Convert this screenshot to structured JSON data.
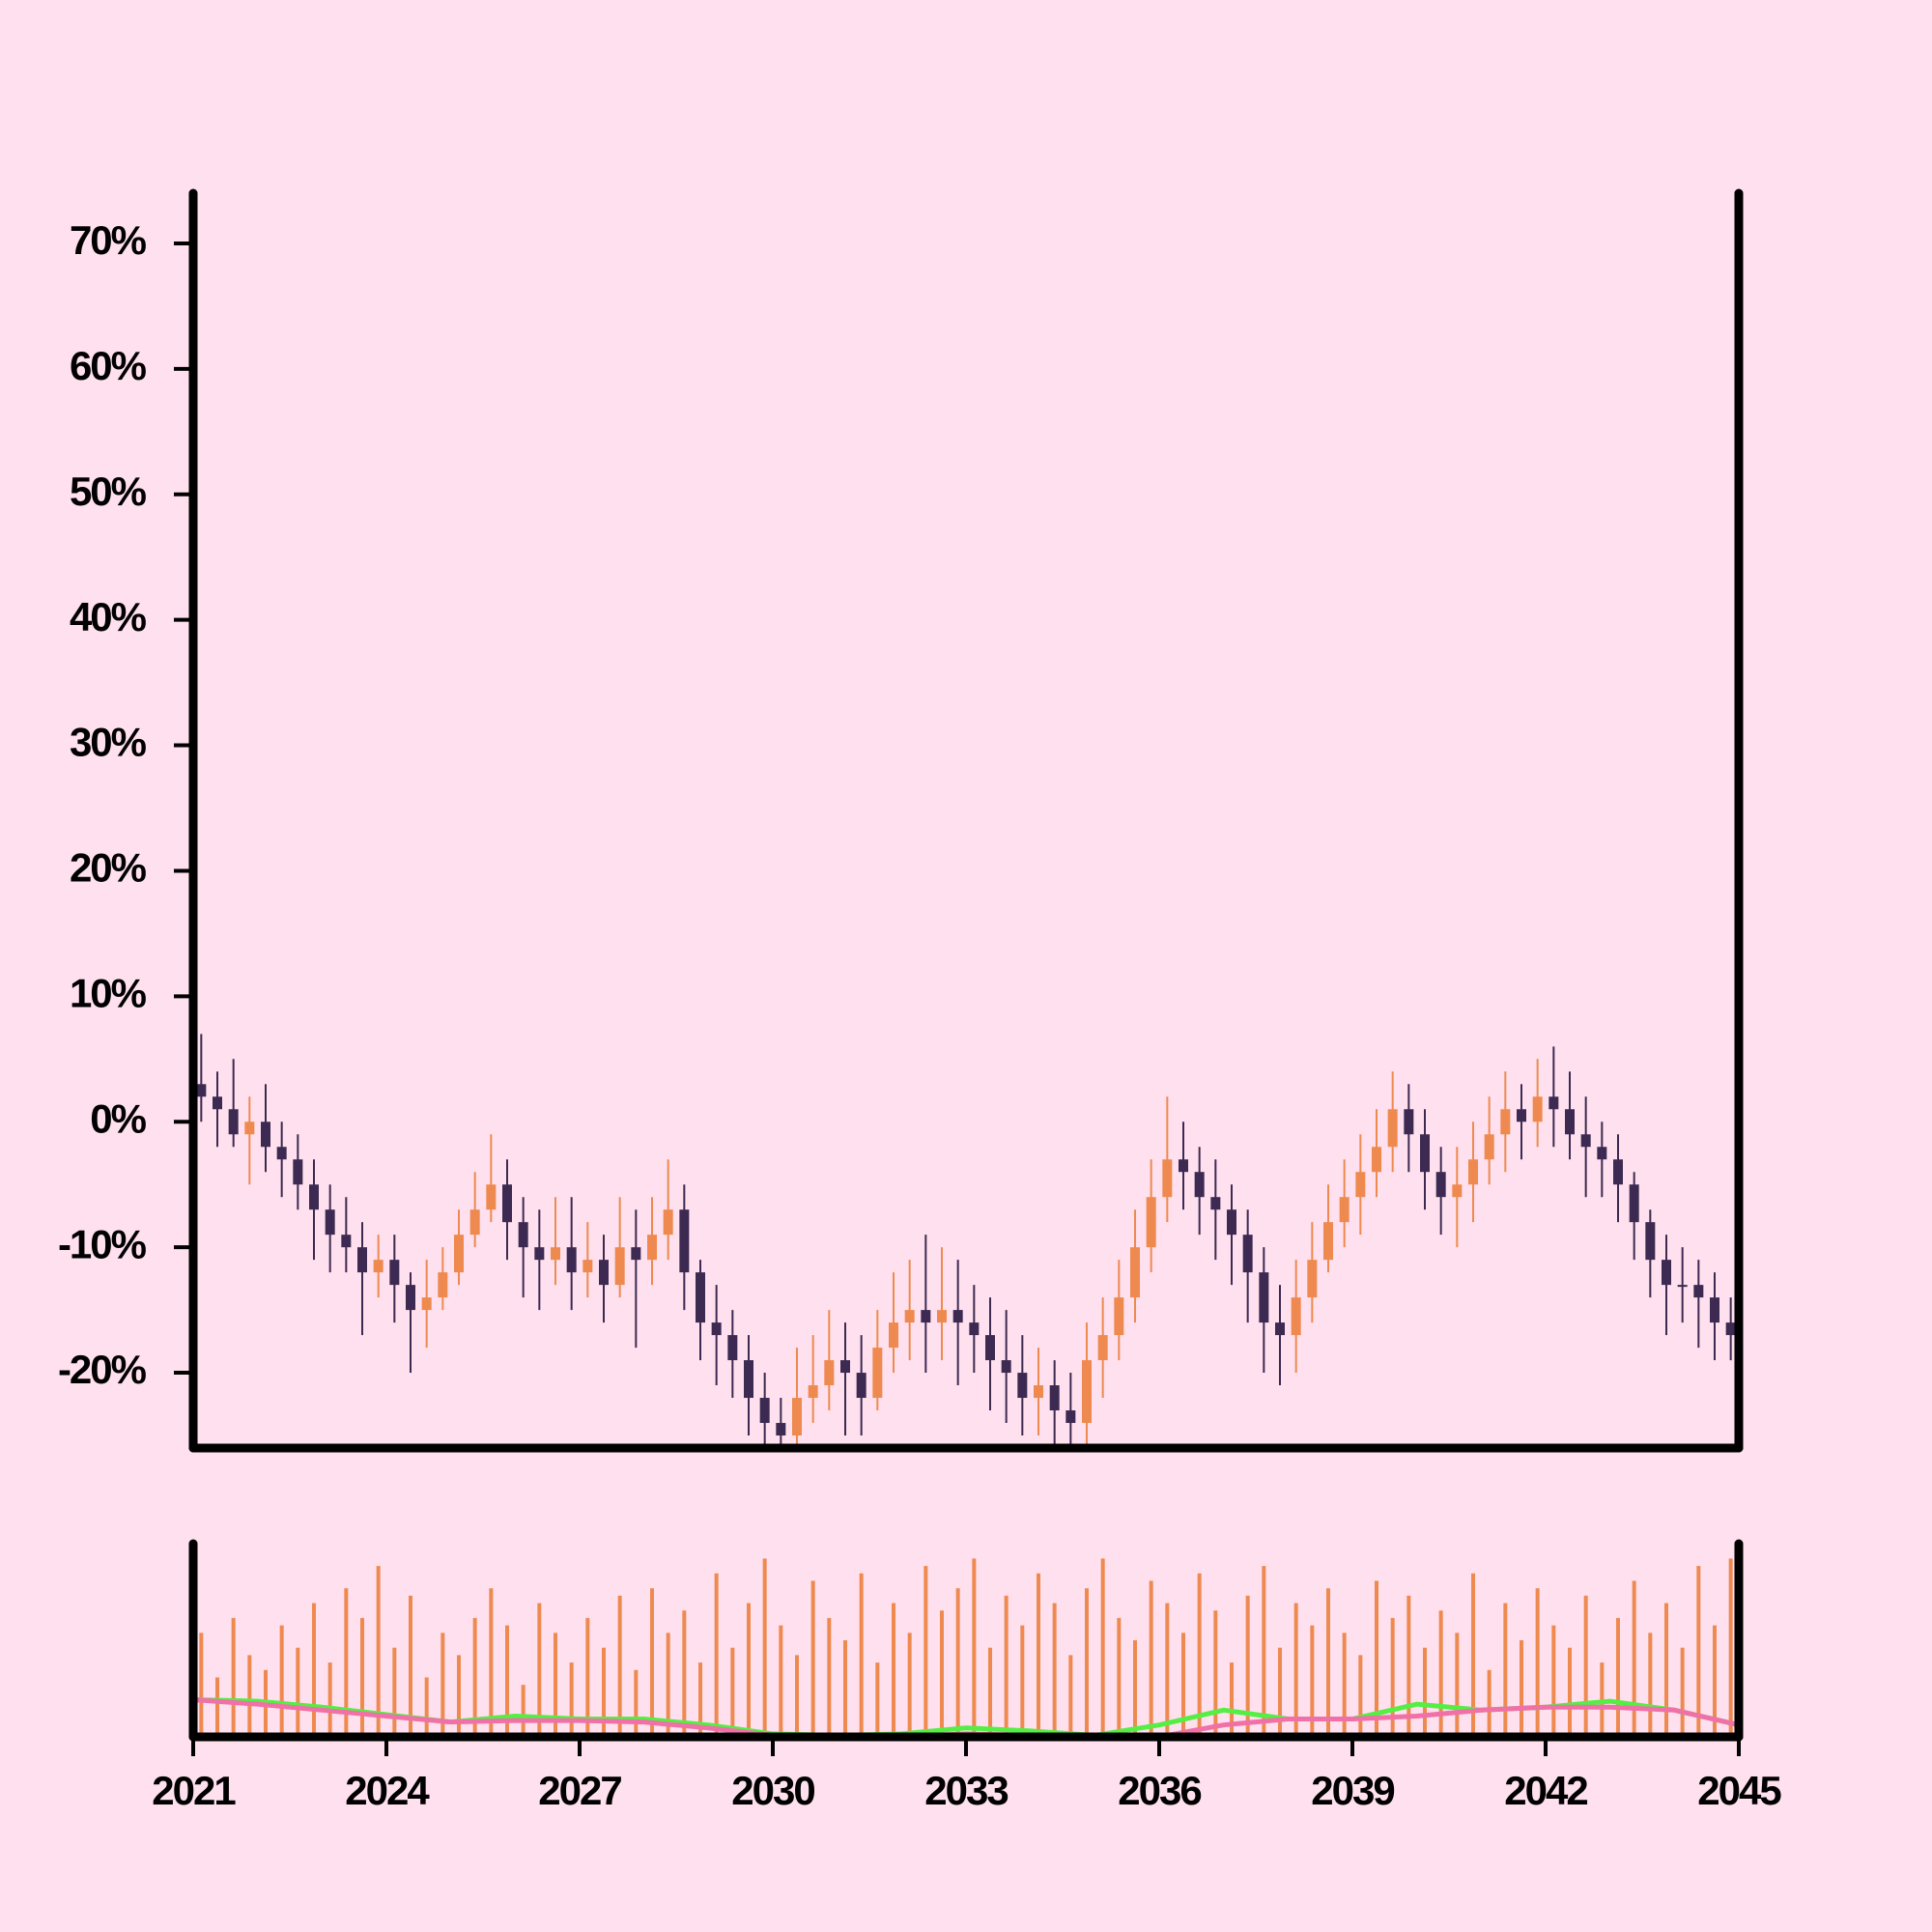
{
  "chart_data": {
    "type": "candlestick",
    "x": [
      2021,
      2021.25,
      2021.5,
      2021.75,
      2022,
      2022.25,
      2022.5,
      2022.75,
      2023,
      2023.25,
      2023.5,
      2023.75,
      2024,
      2024.25,
      2024.5,
      2024.75,
      2025,
      2025.25,
      2025.5,
      2025.75,
      2026,
      2026.25,
      2026.5,
      2026.75,
      2027,
      2027.25,
      2027.5,
      2027.75,
      2028,
      2028.25,
      2028.5,
      2028.75,
      2029,
      2029.25,
      2029.5,
      2029.75,
      2030,
      2030.25,
      2030.5,
      2030.75,
      2031,
      2031.25,
      2031.5,
      2031.75,
      2032,
      2032.25,
      2032.5,
      2032.75,
      2033,
      2033.25,
      2033.5,
      2033.75,
      2034,
      2034.25,
      2034.5,
      2034.75,
      2035,
      2035.25,
      2035.5,
      2035.75,
      2036,
      2036.25,
      2036.5,
      2036.75,
      2037,
      2037.25,
      2037.5,
      2037.75,
      2038,
      2038.25,
      2038.5,
      2038.75,
      2039,
      2039.25,
      2039.5,
      2039.75,
      2040,
      2040.25,
      2040.5,
      2040.75,
      2041,
      2041.25,
      2041.5,
      2041.75,
      2042,
      2042.25,
      2042.5,
      2042.75,
      2043,
      2043.25,
      2043.5,
      2043.75,
      2044,
      2044.25,
      2044.5,
      2044.75
    ],
    "open": [
      3,
      2,
      1,
      -1,
      0,
      -2,
      -3,
      -5,
      -7,
      -9,
      -10,
      -12,
      -11,
      -13,
      -15,
      -14,
      -12,
      -9,
      -7,
      -5,
      -8,
      -10,
      -11,
      -10,
      -12,
      -11,
      -13,
      -10,
      -11,
      -9,
      -7,
      -12,
      -16,
      -17,
      -19,
      -22,
      -24,
      -25,
      -22,
      -21,
      -19,
      -20,
      -22,
      -18,
      -16,
      -15,
      -16,
      -15,
      -16,
      -17,
      -19,
      -20,
      -22,
      -21,
      -23,
      -24,
      -19,
      -17,
      -14,
      -10,
      -6,
      -3,
      -4,
      -6,
      -7,
      -9,
      -12,
      -16,
      -17,
      -14,
      -11,
      -8,
      -6,
      -4,
      -2,
      1,
      -1,
      -4,
      -6,
      -5,
      -3,
      -1,
      1,
      0,
      2,
      1,
      -1,
      -2,
      -3,
      -5,
      -8,
      -11,
      -13,
      -13,
      -14,
      -16
    ],
    "high": [
      7,
      4,
      5,
      2,
      3,
      0,
      -1,
      -3,
      -5,
      -6,
      -8,
      -9,
      -9,
      -12,
      -11,
      -10,
      -7,
      -4,
      -1,
      -3,
      -6,
      -7,
      -6,
      -6,
      -8,
      -9,
      -6,
      -7,
      -6,
      -3,
      -5,
      -11,
      -13,
      -15,
      -17,
      -20,
      -22,
      -18,
      -17,
      -15,
      -16,
      -17,
      -15,
      -12,
      -11,
      -9,
      -10,
      -11,
      -13,
      -14,
      -15,
      -17,
      -18,
      -19,
      -20,
      -16,
      -14,
      -11,
      -7,
      -3,
      2,
      0,
      -2,
      -3,
      -5,
      -7,
      -10,
      -13,
      -11,
      -8,
      -5,
      -3,
      -1,
      1,
      4,
      3,
      1,
      -2,
      -2,
      0,
      2,
      4,
      3,
      5,
      6,
      4,
      2,
      0,
      -1,
      -4,
      -7,
      -9,
      -10,
      -11,
      -12,
      -14
    ],
    "low": [
      0,
      -2,
      -2,
      -5,
      -4,
      -6,
      -7,
      -11,
      -12,
      -12,
      -17,
      -14,
      -16,
      -20,
      -18,
      -15,
      -13,
      -10,
      -8,
      -11,
      -14,
      -15,
      -13,
      -15,
      -14,
      -16,
      -14,
      -18,
      -13,
      -11,
      -15,
      -19,
      -21,
      -22,
      -25,
      -26,
      -26,
      -26,
      -24,
      -23,
      -25,
      -25,
      -23,
      -20,
      -19,
      -20,
      -19,
      -21,
      -20,
      -23,
      -24,
      -25,
      -25,
      -26,
      -26,
      -26,
      -22,
      -19,
      -16,
      -12,
      -8,
      -7,
      -9,
      -11,
      -13,
      -16,
      -20,
      -21,
      -20,
      -16,
      -12,
      -10,
      -9,
      -6,
      -4,
      -4,
      -7,
      -9,
      -10,
      -8,
      -5,
      -4,
      -3,
      -2,
      -2,
      -3,
      -6,
      -6,
      -8,
      -11,
      -14,
      -17,
      -16,
      -18,
      -19,
      -19
    ],
    "close": [
      2,
      1,
      -1,
      0,
      -2,
      -3,
      -5,
      -7,
      -9,
      -10,
      -12,
      -11,
      -13,
      -15,
      -14,
      -12,
      -9,
      -7,
      -5,
      -8,
      -10,
      -11,
      -10,
      -12,
      -11,
      -13,
      -10,
      -11,
      -9,
      -7,
      -12,
      -16,
      -17,
      -19,
      -22,
      -24,
      -25,
      -22,
      -21,
      -19,
      -20,
      -22,
      -18,
      -16,
      -15,
      -16,
      -15,
      -16,
      -17,
      -19,
      -20,
      -22,
      -21,
      -23,
      -24,
      -19,
      -17,
      -14,
      -10,
      -6,
      -3,
      -4,
      -6,
      -7,
      -9,
      -12,
      -16,
      -17,
      -14,
      -11,
      -8,
      -6,
      -4,
      -2,
      1,
      -1,
      -4,
      -6,
      -5,
      -3,
      -1,
      1,
      0,
      2,
      1,
      -1,
      -2,
      -3,
      -5,
      -8,
      -11,
      -13,
      -13,
      -14,
      -16,
      -17
    ],
    "up_color": "#ee8a4f",
    "down_color": "#3d2a52",
    "xlim": [
      2021,
      2045
    ],
    "xticks": [
      2021,
      2024,
      2027,
      2030,
      2033,
      2036,
      2039,
      2042,
      2045
    ],
    "ylim": [
      -26,
      74
    ],
    "yticks": [
      {
        "value": -20,
        "label": "-20%"
      },
      {
        "value": -10,
        "label": "-10%"
      },
      {
        "value": 0,
        "label": "0%"
      },
      {
        "value": 10,
        "label": "10%"
      },
      {
        "value": 20,
        "label": "20%"
      },
      {
        "value": 30,
        "label": "30%"
      },
      {
        "value": 40,
        "label": "40%"
      },
      {
        "value": 50,
        "label": "50%"
      },
      {
        "value": 60,
        "label": "60%"
      },
      {
        "value": 70,
        "label": "70%"
      }
    ],
    "volume": {
      "color": "#ee8a4f",
      "ylim": [
        0,
        130
      ],
      "values": [
        70,
        40,
        80,
        55,
        45,
        75,
        60,
        90,
        50,
        100,
        80,
        115,
        60,
        95,
        40,
        70,
        55,
        80,
        100,
        75,
        35,
        90,
        70,
        50,
        80,
        60,
        95,
        45,
        100,
        70,
        85,
        50,
        110,
        60,
        90,
        120,
        75,
        55,
        105,
        80,
        65,
        110,
        50,
        90,
        70,
        115,
        85,
        100,
        120,
        60,
        95,
        75,
        110,
        90,
        55,
        100,
        120,
        80,
        65,
        105,
        90,
        70,
        110,
        85,
        50,
        95,
        115,
        60,
        90,
        75,
        100,
        70,
        55,
        105,
        80,
        95,
        60,
        85,
        70,
        110,
        45,
        90,
        65,
        100,
        75,
        60,
        95,
        50,
        80,
        105,
        70,
        90,
        60,
        115,
        75,
        120
      ]
    },
    "lines": [
      {
        "color": "#55ee44",
        "x": [
          2021,
          2022,
          2023,
          2024,
          2025,
          2026,
          2027,
          2028,
          2029,
          2030,
          2031,
          2032,
          2033,
          2034,
          2035,
          2036,
          2037,
          2038,
          2039,
          2040,
          2041,
          2042,
          2043,
          2044,
          2045
        ],
        "values": [
          25,
          24,
          20,
          15,
          10,
          14,
          12,
          12,
          8,
          2,
          1,
          2,
          6,
          4,
          1,
          8,
          18,
          12,
          12,
          22,
          18,
          20,
          24,
          18,
          8
        ]
      },
      {
        "color": "#f070a8",
        "x": [
          2021,
          2022,
          2023,
          2024,
          2025,
          2026,
          2027,
          2028,
          2029,
          2030,
          2031,
          2032,
          2033,
          2034,
          2035,
          2036,
          2037,
          2038,
          2039,
          2040,
          2041,
          2042,
          2043,
          2044,
          2045
        ],
        "values": [
          25,
          22,
          18,
          14,
          10,
          11,
          11,
          10,
          6,
          1,
          0,
          0,
          2,
          1,
          0,
          0,
          8,
          12,
          12,
          14,
          18,
          20,
          20,
          18,
          8
        ]
      }
    ]
  }
}
